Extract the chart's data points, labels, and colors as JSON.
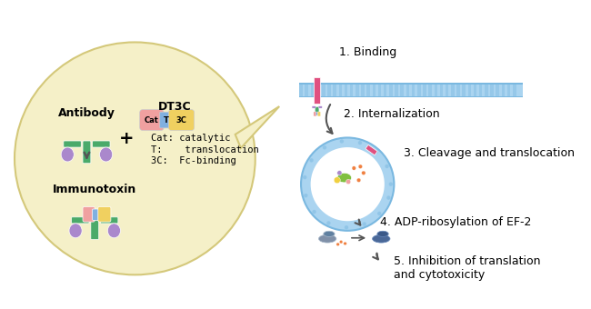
{
  "bg_color": "#ffffff",
  "bubble_color": "#f5f0c8",
  "bubble_border": "#d4c87a",
  "membrane_color": "#aad4f0",
  "membrane_stripe": "#7ab8e0",
  "receptor_color": "#e05080",
  "antibody_green": "#4aaa6a",
  "antibody_purple": "#aa88cc",
  "cat_color": "#f0a0a0",
  "t_color": "#80b0e0",
  "threec_color": "#f0d060",
  "text_color": "#000000",
  "step_labels": [
    "1. Binding",
    "2. Internalization",
    "3. Cleavage and translocation",
    "4. ADP-ribosylation of EF-2",
    "5. Inhibition of translation\nand cytotoxicity"
  ],
  "legend_texts": [
    "Cat: catalytic",
    "T:    translocation",
    "3C:  Fc-binding"
  ],
  "title_antibody": "Antibody",
  "title_dt3c": "DT3C",
  "title_immunotoxin": "Immunotoxin",
  "arrow_color": "#555555",
  "orange_dot_color": "#f08040",
  "green_blob_color": "#80c040",
  "yellow_dot_color": "#f0d040"
}
